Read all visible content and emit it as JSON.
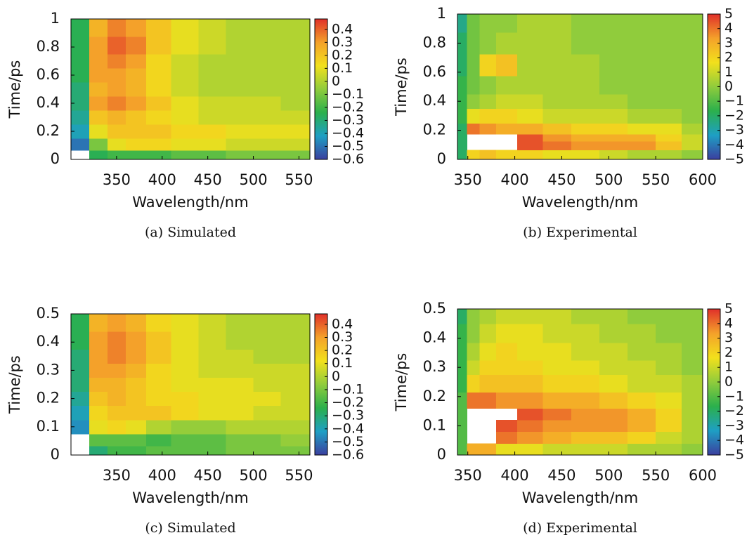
{
  "chart_data": [
    {
      "type": "heatmap",
      "caption": "(a) Simulated",
      "x_label": "Wavelength/nm",
      "y_label": "Time/ps",
      "xlim": [
        300,
        562
      ],
      "ylim": [
        0,
        1
      ],
      "xticks": [
        350,
        400,
        450,
        500,
        550
      ],
      "yticks": [
        0,
        0.2,
        0.4,
        0.6,
        0.8,
        1
      ],
      "zlim": [
        -0.6,
        0.48
      ],
      "zticks": [
        0.4,
        0.3,
        0.2,
        0.1,
        0,
        {
          "value": -0.1,
          "label": "−0.1"
        },
        {
          "value": -0.2,
          "label": "−0.2"
        },
        {
          "value": -0.3,
          "label": "−0.3"
        },
        {
          "value": -0.4,
          "label": "−0.4"
        },
        {
          "value": -0.5,
          "label": "−0.5"
        },
        {
          "value": -0.6,
          "label": "−0.6"
        }
      ],
      "colormap": [
        "#3b3f9f",
        "#1e9fc4",
        "#2bb04c",
        "#90cc3c",
        "#f2e01c",
        "#f4a12a",
        "#e0302a"
      ],
      "x": [
        310,
        330,
        350,
        370,
        395,
        425,
        455,
        485,
        515,
        545
      ],
      "y": [
        0.03,
        0.1,
        0.2,
        0.3,
        0.4,
        0.5,
        0.6,
        0.7,
        0.8,
        0.95
      ],
      "z": [
        [
          null,
          -0.25,
          -0.2,
          -0.2,
          -0.2,
          -0.15,
          -0.15,
          -0.1,
          -0.1,
          -0.1
        ],
        [
          -0.5,
          -0.1,
          0.1,
          0.15,
          0.15,
          0.1,
          0.1,
          0.05,
          0.05,
          0.05
        ],
        [
          -0.4,
          0.1,
          0.2,
          0.2,
          0.2,
          0.15,
          0.15,
          0.1,
          0.1,
          0.1
        ],
        [
          -0.35,
          0.2,
          0.25,
          0.2,
          0.15,
          0.1,
          0.05,
          0.05,
          0.05,
          0.05
        ],
        [
          -0.3,
          0.3,
          0.35,
          0.3,
          0.2,
          0.1,
          0.05,
          0.05,
          0.05,
          0
        ],
        [
          -0.3,
          0.25,
          0.3,
          0.25,
          0.15,
          0.05,
          0,
          0,
          0,
          0
        ],
        [
          -0.25,
          0.3,
          0.3,
          0.25,
          0.15,
          0.05,
          0,
          0,
          0,
          0
        ],
        [
          -0.25,
          0.3,
          0.35,
          0.3,
          0.15,
          0.05,
          0,
          0,
          0,
          0
        ],
        [
          -0.25,
          0.3,
          0.4,
          0.35,
          0.2,
          0.1,
          0.05,
          0,
          0,
          0
        ],
        [
          -0.25,
          0.25,
          0.35,
          0.3,
          0.2,
          0.1,
          0.05,
          0,
          0,
          0
        ]
      ]
    },
    {
      "type": "heatmap",
      "caption": "(b) Experimental",
      "x_label": "Wavelength/nm",
      "y_label": "Time/ps",
      "xlim": [
        339,
        600
      ],
      "ylim": [
        0,
        1
      ],
      "xticks": [
        350,
        400,
        450,
        500,
        550,
        600
      ],
      "yticks": [
        0,
        0.2,
        0.4,
        0.6,
        0.8,
        1
      ],
      "zlim": [
        -5,
        5
      ],
      "zticks": [
        5,
        4,
        3,
        2,
        1,
        0,
        {
          "value": -1,
          "label": "−1"
        },
        {
          "value": -2,
          "label": "−2"
        },
        {
          "value": -3,
          "label": "−3"
        },
        {
          "value": -4,
          "label": "−4"
        },
        {
          "value": -5,
          "label": "−5"
        }
      ],
      "colormap": [
        "#3b3f9f",
        "#1e9fc4",
        "#2bb04c",
        "#90cc3c",
        "#f2e01c",
        "#f4a12a",
        "#e0302a"
      ],
      "x": [
        343,
        355,
        370,
        390,
        415,
        445,
        475,
        505,
        535,
        565,
        590
      ],
      "y": [
        0.03,
        0.1,
        0.15,
        0.2,
        0.3,
        0.4,
        0.5,
        0.65,
        0.8,
        0.95
      ],
      "z": [
        [
          -2,
          2,
          2.5,
          2,
          2,
          1.5,
          1.5,
          1,
          0.5,
          0.5,
          0
        ],
        [
          -2,
          null,
          null,
          null,
          4.5,
          4,
          3.5,
          3.5,
          3.5,
          2.5,
          1
        ],
        [
          -2,
          null,
          null,
          null,
          4.5,
          3.5,
          3,
          3,
          3,
          2,
          1
        ],
        [
          -2,
          4,
          3.5,
          3,
          3,
          2.5,
          2,
          2,
          1.5,
          1.5,
          0.5
        ],
        [
          -1.5,
          1.5,
          2,
          2,
          1.5,
          1,
          1,
          1,
          0.5,
          0.5,
          0
        ],
        [
          -1.5,
          0,
          0.5,
          1,
          1,
          0.5,
          0.5,
          0.5,
          0,
          0,
          0
        ],
        [
          -1.5,
          -0.5,
          0,
          0.5,
          0.5,
          0.5,
          0.5,
          0,
          0,
          0,
          0
        ],
        [
          -2,
          -0.5,
          2,
          2.5,
          0.5,
          0.5,
          0.5,
          0,
          0,
          0,
          0
        ],
        [
          -2,
          -0.5,
          0,
          0.5,
          0.5,
          0.5,
          0,
          0,
          0,
          0,
          0
        ],
        [
          -2.5,
          -0.5,
          0,
          0,
          0.5,
          0.5,
          0,
          0,
          0,
          0,
          0
        ]
      ]
    },
    {
      "type": "heatmap",
      "caption": "(c) Simulated",
      "x_label": "Wavelength/nm",
      "y_label": "Time/ps",
      "xlim": [
        300,
        562
      ],
      "ylim": [
        0,
        0.5
      ],
      "xticks": [
        350,
        400,
        450,
        500,
        550
      ],
      "yticks": [
        0,
        0.1,
        0.2,
        0.3,
        0.4,
        0.5
      ],
      "zlim": [
        -0.6,
        0.48
      ],
      "zticks": [
        0.4,
        0.3,
        0.2,
        0.1,
        0,
        {
          "value": -0.1,
          "label": "−0.1"
        },
        {
          "value": -0.2,
          "label": "−0.2"
        },
        {
          "value": -0.3,
          "label": "−0.3"
        },
        {
          "value": -0.4,
          "label": "−0.4"
        },
        {
          "value": -0.5,
          "label": "−0.5"
        },
        {
          "value": -0.6,
          "label": "−0.6"
        }
      ],
      "colormap": [
        "#3b3f9f",
        "#1e9fc4",
        "#2bb04c",
        "#90cc3c",
        "#f2e01c",
        "#f4a12a",
        "#e0302a"
      ],
      "x": [
        310,
        330,
        350,
        370,
        395,
        425,
        455,
        485,
        515,
        545
      ],
      "y": [
        0.015,
        0.05,
        0.1,
        0.15,
        0.2,
        0.25,
        0.3,
        0.35,
        0.4,
        0.475
      ],
      "z": [
        [
          null,
          -0.3,
          -0.2,
          -0.2,
          -0.15,
          -0.15,
          -0.15,
          -0.1,
          -0.1,
          -0.1
        ],
        [
          null,
          -0.15,
          -0.15,
          -0.15,
          -0.2,
          -0.15,
          -0.15,
          -0.1,
          -0.1,
          -0.05
        ],
        [
          -0.45,
          0.1,
          0.15,
          0.1,
          0,
          -0.05,
          -0.05,
          0,
          0,
          0
        ],
        [
          -0.4,
          0.15,
          0.2,
          0.2,
          0.2,
          0.15,
          0.1,
          0.1,
          0.05,
          0.05
        ],
        [
          -0.35,
          0.2,
          0.25,
          0.2,
          0.15,
          0.15,
          0.1,
          0.1,
          0.1,
          0.05
        ],
        [
          -0.3,
          0.25,
          0.25,
          0.2,
          0.15,
          0.1,
          0.1,
          0.1,
          0.05,
          0.05
        ],
        [
          -0.3,
          0.3,
          0.3,
          0.25,
          0.15,
          0.1,
          0.05,
          0.05,
          0.05,
          0.05
        ],
        [
          -0.3,
          0.3,
          0.35,
          0.3,
          0.2,
          0.1,
          0.05,
          0.05,
          0,
          0
        ],
        [
          -0.25,
          0.3,
          0.35,
          0.3,
          0.2,
          0.1,
          0.05,
          0,
          0,
          0
        ],
        [
          -0.25,
          0.25,
          0.3,
          0.25,
          0.15,
          0.1,
          0.05,
          0,
          0,
          0
        ]
      ]
    },
    {
      "type": "heatmap",
      "caption": "(d) Experimental",
      "x_label": "Wavelength/nm",
      "y_label": "Time/ps",
      "xlim": [
        339,
        600
      ],
      "ylim": [
        0,
        0.5
      ],
      "xticks": [
        350,
        400,
        450,
        500,
        550,
        600
      ],
      "yticks": [
        0,
        0.1,
        0.2,
        0.3,
        0.4,
        0.5
      ],
      "zlim": [
        -5,
        5
      ],
      "zticks": [
        5,
        4,
        3,
        2,
        1,
        0,
        {
          "value": -1,
          "label": "−1"
        },
        {
          "value": -2,
          "label": "−2"
        },
        {
          "value": -3,
          "label": "−3"
        },
        {
          "value": -4,
          "label": "−4"
        },
        {
          "value": -5,
          "label": "−5"
        }
      ],
      "colormap": [
        "#3b3f9f",
        "#1e9fc4",
        "#2bb04c",
        "#90cc3c",
        "#f2e01c",
        "#f4a12a",
        "#e0302a"
      ],
      "x": [
        343,
        355,
        370,
        390,
        415,
        445,
        475,
        505,
        535,
        565,
        590
      ],
      "y": [
        0.02,
        0.06,
        0.1,
        0.14,
        0.18,
        0.25,
        0.3,
        0.35,
        0.42,
        0.48
      ],
      "z": [
        [
          -1,
          3,
          3,
          1.5,
          1.5,
          1,
          1,
          1,
          0.5,
          0.5,
          0
        ],
        [
          -1,
          null,
          null,
          4,
          3.5,
          3,
          2.5,
          2.5,
          2,
          1,
          0.5
        ],
        [
          -1,
          null,
          null,
          4.5,
          4,
          3.5,
          3.5,
          3.5,
          3,
          2,
          0.5
        ],
        [
          -1,
          null,
          null,
          null,
          4.5,
          4,
          3.5,
          3.5,
          3,
          2,
          0.5
        ],
        [
          -1,
          4,
          4,
          3.5,
          3.5,
          3,
          3,
          2.5,
          2,
          1.5,
          0.5
        ],
        [
          -1.5,
          2,
          2.5,
          2.5,
          2.5,
          2,
          2,
          1.5,
          1,
          1,
          0.5
        ],
        [
          -1.5,
          1,
          2,
          2,
          2,
          1.5,
          1.5,
          1,
          1,
          0.5,
          0
        ],
        [
          -1.5,
          0.5,
          1.5,
          2,
          1.5,
          1.5,
          1,
          1,
          0.5,
          0.5,
          0
        ],
        [
          -1.5,
          0,
          1,
          1.5,
          1.5,
          1,
          1,
          0.5,
          0.5,
          0,
          0
        ],
        [
          -2,
          0,
          0.5,
          1,
          1,
          1,
          0.5,
          0.5,
          0,
          0,
          0
        ]
      ]
    }
  ]
}
